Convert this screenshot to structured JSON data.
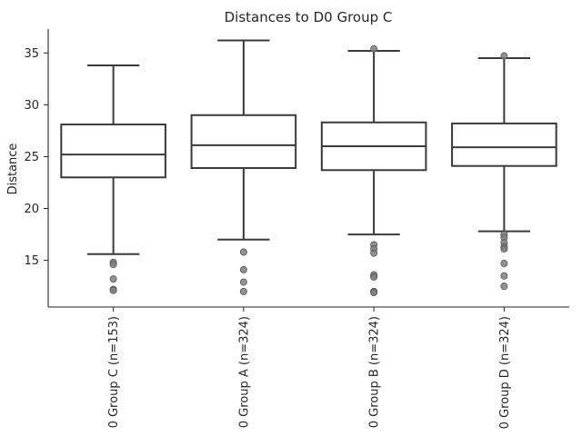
{
  "chart_data": {
    "type": "box",
    "title": "Distances to D0 Group C",
    "xlabel": "",
    "ylabel": "Distance",
    "ylim": [
      10.5,
      37.3
    ],
    "yticks": [
      15,
      20,
      25,
      30,
      35
    ],
    "grid": false,
    "categories": [
      "0 Group C (n=153)",
      "0 Group A (n=324)",
      "0 Group B (n=324)",
      "0 Group D (n=324)"
    ],
    "boxes": [
      {
        "whislo": 15.6,
        "q1": 23.0,
        "med": 25.2,
        "q3": 28.1,
        "whishi": 33.8,
        "fliers": [
          14.8,
          14.6,
          13.2,
          12.2,
          12.1
        ]
      },
      {
        "whislo": 17.0,
        "q1": 23.9,
        "med": 26.1,
        "q3": 29.0,
        "whishi": 36.2,
        "fliers": [
          15.8,
          14.1,
          12.9,
          12.0
        ]
      },
      {
        "whislo": 17.5,
        "q1": 23.7,
        "med": 26.0,
        "q3": 28.3,
        "whishi": 35.2,
        "fliers": [
          35.4,
          16.5,
          16.1,
          15.7,
          13.6,
          13.4,
          12.0,
          11.9
        ]
      },
      {
        "whislo": 17.8,
        "q1": 24.1,
        "med": 25.9,
        "q3": 28.2,
        "whishi": 34.5,
        "fliers": [
          34.7,
          17.5,
          17.2,
          16.7,
          16.3,
          16.1,
          14.7,
          13.5,
          12.5
        ]
      }
    ]
  }
}
